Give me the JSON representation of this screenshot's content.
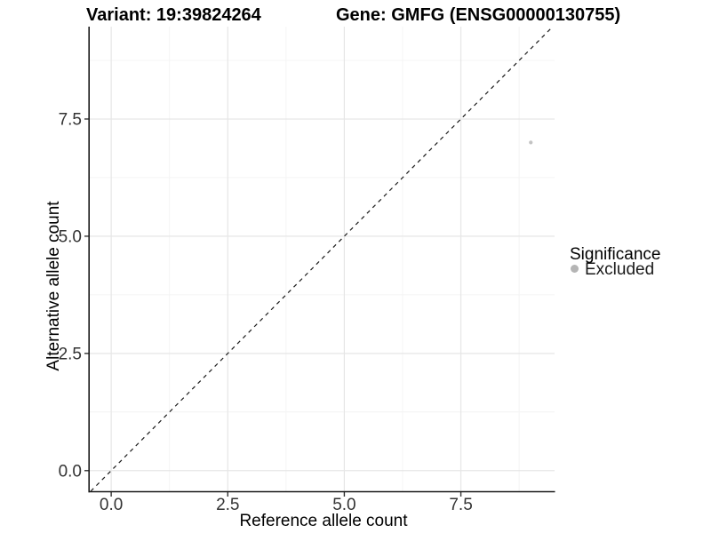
{
  "header": {
    "title_left": "Variant: 19:39824264",
    "title_right": "Gene: GMFG (ENSG00000130755)"
  },
  "chart_data": {
    "type": "scatter",
    "title_left": "Variant: 19:39824264",
    "title_right": "Gene: GMFG (ENSG00000130755)",
    "xlabel": "Reference allele count",
    "ylabel": "Alternative allele count",
    "xlim": [
      -0.46,
      9.51
    ],
    "ylim": [
      -0.44,
      9.47
    ],
    "x_tick_values": [
      0,
      2.5,
      5,
      7.5
    ],
    "x_tick_labels": [
      "0.0",
      "2.5",
      "5.0",
      "7.5"
    ],
    "y_tick_values": [
      0,
      2.5,
      5,
      7.5
    ],
    "y_tick_labels": [
      "0.0",
      "2.5",
      "5.0",
      "7.5"
    ],
    "x_minor_values": [
      1.25,
      3.75,
      6.25,
      8.75
    ],
    "y_minor_values": [
      1.25,
      3.75,
      6.25,
      8.75
    ],
    "grid": true,
    "points": [
      {
        "x": 9,
        "y": 7,
        "significance": "Excluded",
        "color": "#c3c3c3"
      }
    ],
    "identity_line": {
      "style": "dashed",
      "slope": 1,
      "intercept": 0,
      "color": "#1a1a1a"
    },
    "legend": {
      "position": "right",
      "title": "Significance",
      "items": [
        {
          "label": "Excluded",
          "color": "#b5b5b5"
        }
      ]
    }
  },
  "colors": {
    "background": "#ffffff",
    "grid_major": "#e6e6e6",
    "grid_minor": "#f4f4f4",
    "axis_line": "#1a1a1a",
    "tick_mark": "#333333"
  }
}
